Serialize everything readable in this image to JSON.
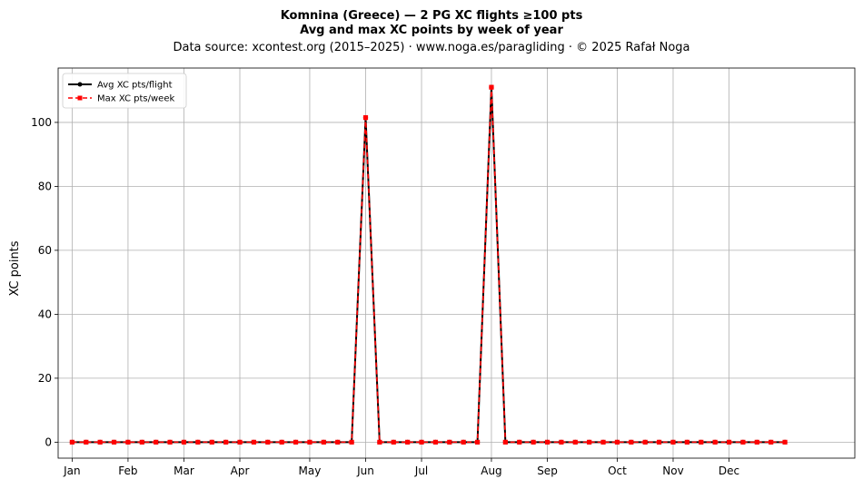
{
  "chart_data": {
    "type": "line",
    "title": "Komnina (Greece)  —  2 PG XC flights ≥100 pts",
    "title2": "Avg and max XC points by week of year",
    "subtitle": "Data source: xcontest.org (2015–2025)  ·  www.noga.es/paragliding  ·  © 2025 Rafał Noga",
    "xlabel": "",
    "ylabel": "XC points",
    "x": [
      1,
      2,
      3,
      4,
      5,
      6,
      7,
      8,
      9,
      10,
      11,
      12,
      13,
      14,
      15,
      16,
      17,
      18,
      19,
      20,
      21,
      22,
      23,
      24,
      25,
      26,
      27,
      28,
      29,
      30,
      31,
      32,
      33,
      34,
      35,
      36,
      37,
      38,
      39,
      40,
      41,
      42,
      43,
      44,
      45,
      46,
      47,
      48,
      49,
      50,
      51,
      52
    ],
    "xlim": [
      0,
      57
    ],
    "ylim": [
      -5,
      117
    ],
    "month_ticks": [
      {
        "label": "Jan",
        "week": 1
      },
      {
        "label": "Feb",
        "week": 5
      },
      {
        "label": "Mar",
        "week": 9
      },
      {
        "label": "Apr",
        "week": 13
      },
      {
        "label": "May",
        "week": 18
      },
      {
        "label": "Jun",
        "week": 22
      },
      {
        "label": "Jul",
        "week": 26
      },
      {
        "label": "Aug",
        "week": 31
      },
      {
        "label": "Sep",
        "week": 35
      },
      {
        "label": "Oct",
        "week": 40
      },
      {
        "label": "Nov",
        "week": 44
      },
      {
        "label": "Dec",
        "week": 48
      }
    ],
    "y_ticks": [
      0,
      20,
      40,
      60,
      80,
      100
    ],
    "grid": true,
    "legend_position": "top-left",
    "series": [
      {
        "name": "Avg XC pts/flight",
        "color": "#000000",
        "marker": "circle",
        "style": "solid",
        "values": [
          0,
          0,
          0,
          0,
          0,
          0,
          0,
          0,
          0,
          0,
          0,
          0,
          0,
          0,
          0,
          0,
          0,
          0,
          0,
          0,
          0,
          101.5,
          0,
          0,
          0,
          0,
          0,
          0,
          0,
          0,
          111,
          0,
          0,
          0,
          0,
          0,
          0,
          0,
          0,
          0,
          0,
          0,
          0,
          0,
          0,
          0,
          0,
          0,
          0,
          0,
          0,
          0
        ]
      },
      {
        "name": "Max XC pts/week",
        "color": "#ff0000",
        "marker": "square",
        "style": "dashed",
        "values": [
          0,
          0,
          0,
          0,
          0,
          0,
          0,
          0,
          0,
          0,
          0,
          0,
          0,
          0,
          0,
          0,
          0,
          0,
          0,
          0,
          0,
          101.5,
          0,
          0,
          0,
          0,
          0,
          0,
          0,
          0,
          111,
          0,
          0,
          0,
          0,
          0,
          0,
          0,
          0,
          0,
          0,
          0,
          0,
          0,
          0,
          0,
          0,
          0,
          0,
          0,
          0,
          0
        ]
      }
    ]
  }
}
